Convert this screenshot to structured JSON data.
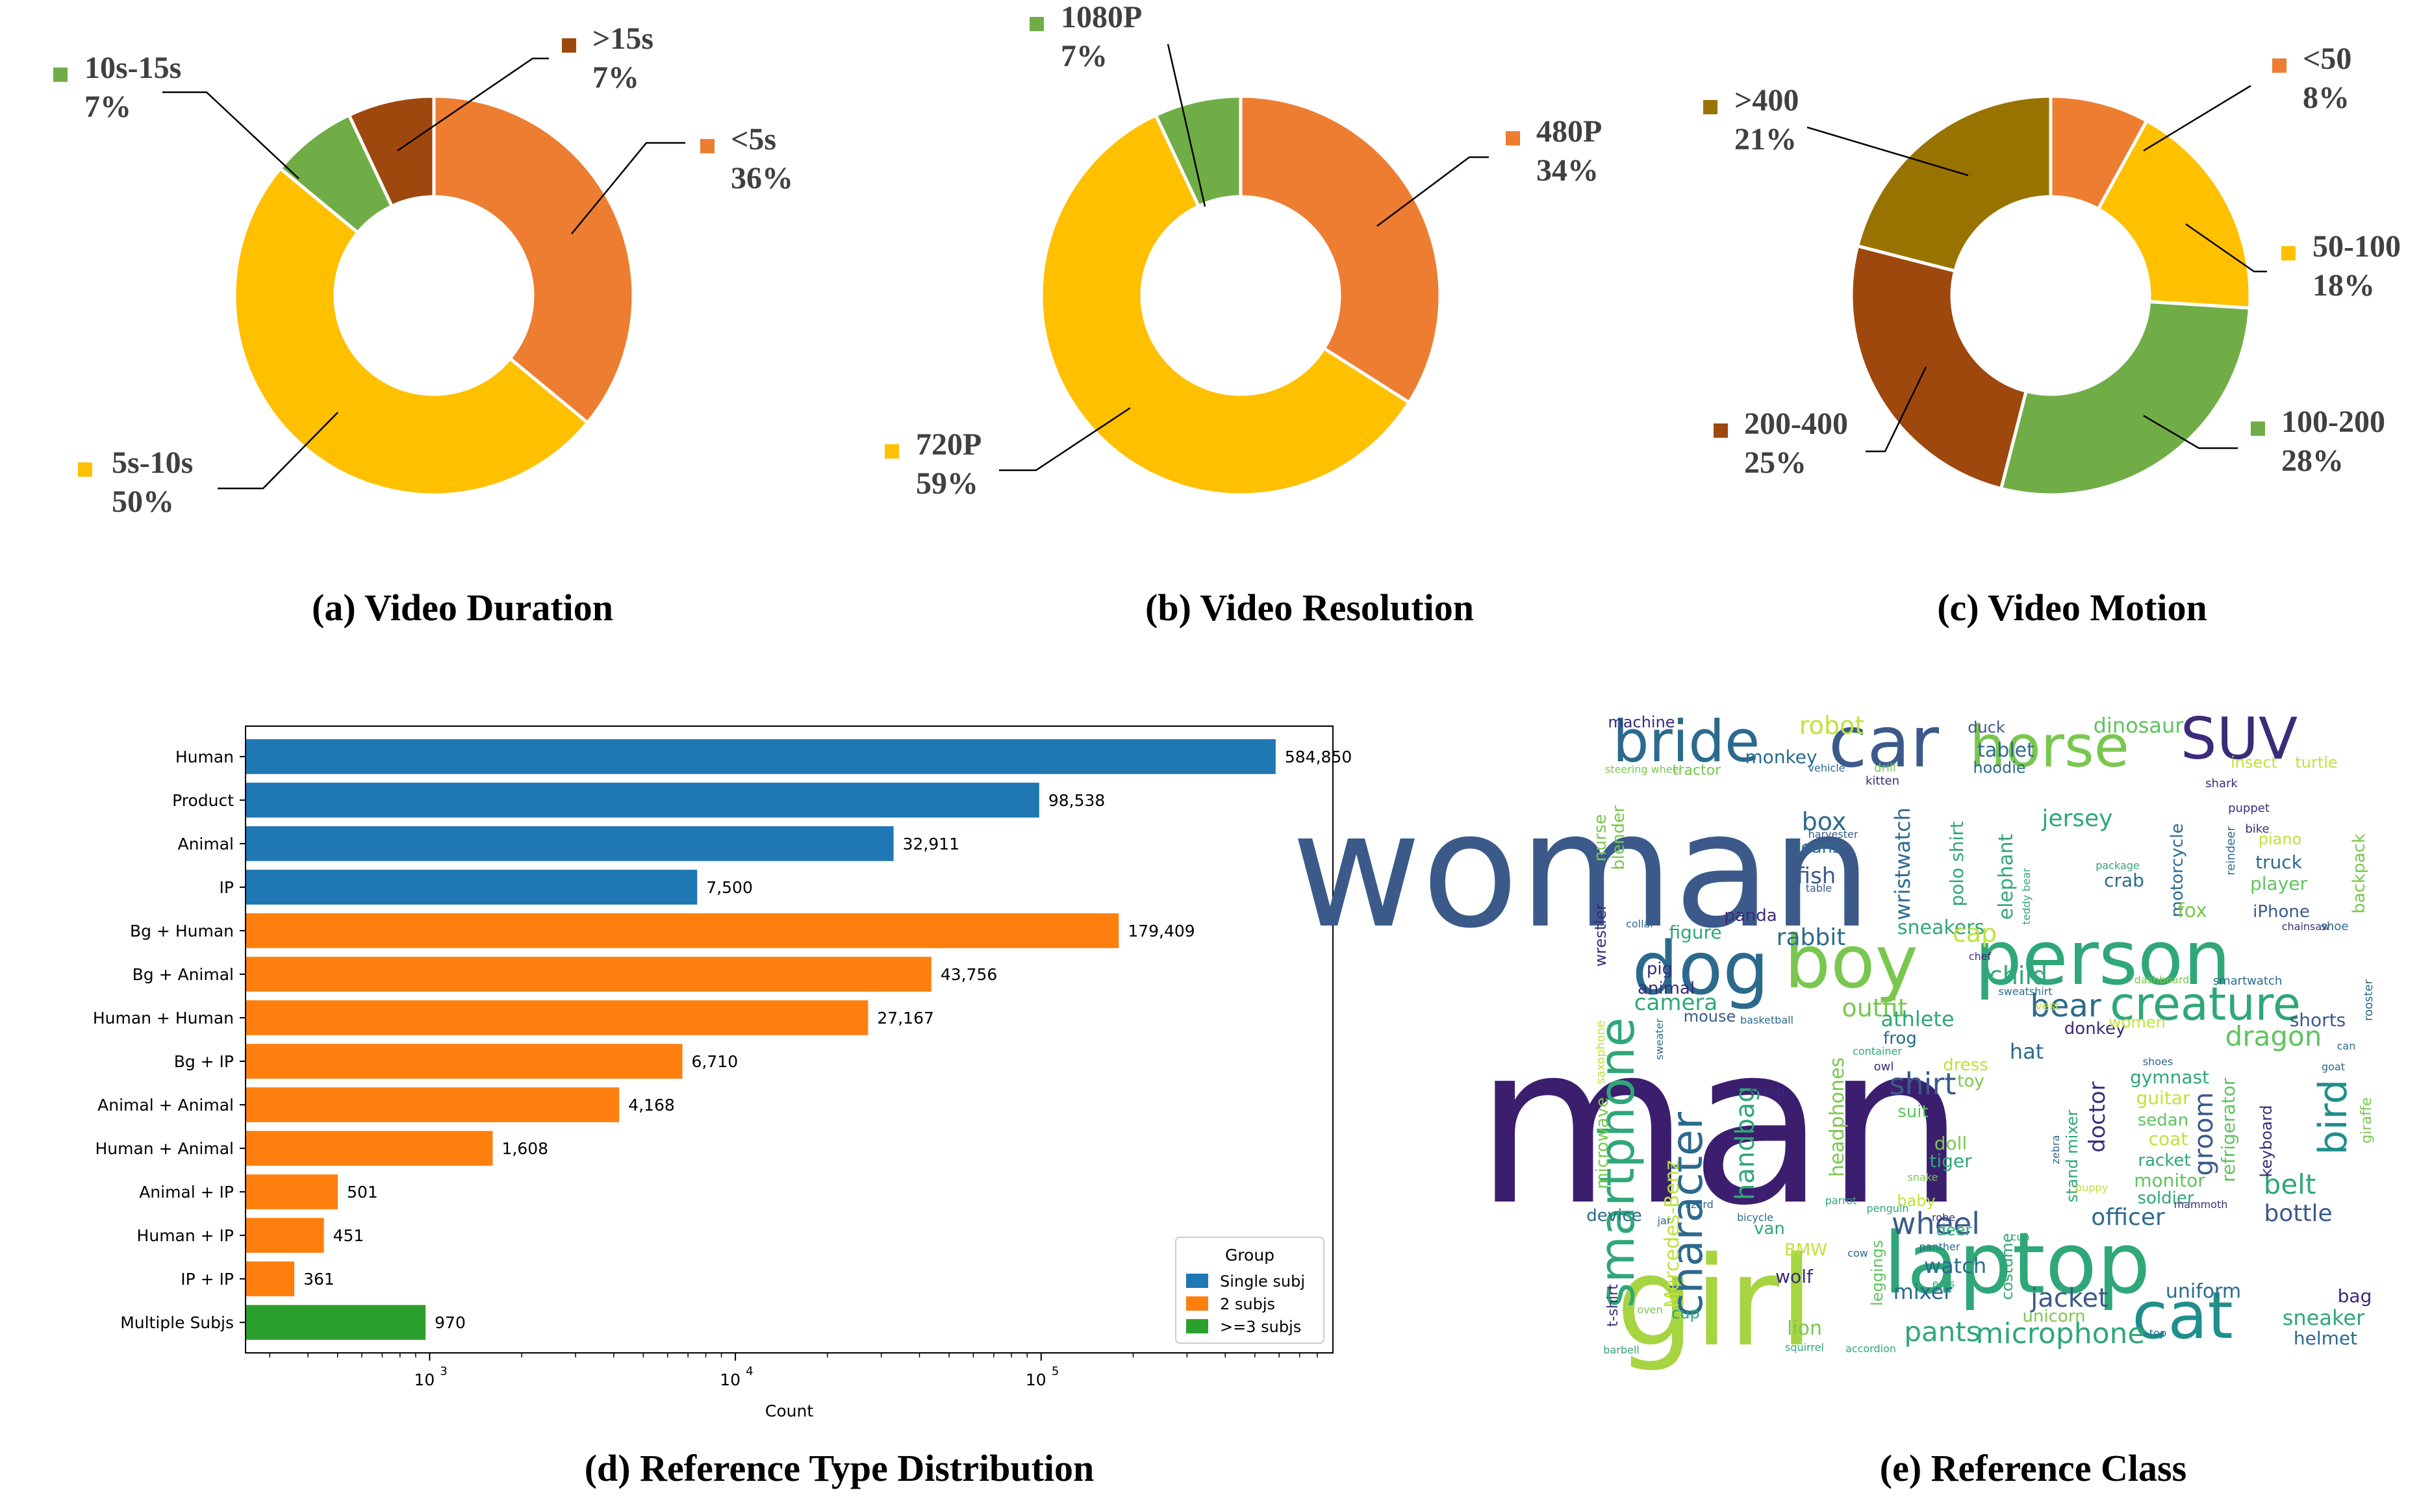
{
  "chart_data": [
    {
      "type": "pie",
      "title": "(a) Video Duration",
      "slices": [
        {
          "label": "<5s",
          "pct_label": "36%",
          "value": 36,
          "color": "#ED7D31"
        },
        {
          "label": "5s-10s",
          "pct_label": "50%",
          "value": 50,
          "color": "#FFC000"
        },
        {
          "label": "10s-15s",
          "pct_label": "7%",
          "value": 7,
          "color": "#70AD47"
        },
        {
          "label": ">15s",
          "pct_label": "7%",
          "value": 7,
          "color": "#9E480E"
        }
      ]
    },
    {
      "type": "pie",
      "title": "(b) Video Resolution",
      "slices": [
        {
          "label": "480P",
          "pct_label": "34%",
          "value": 34,
          "color": "#ED7D31"
        },
        {
          "label": "720P",
          "pct_label": "59%",
          "value": 59,
          "color": "#FFC000"
        },
        {
          "label": "1080P",
          "pct_label": "7%",
          "value": 7,
          "color": "#70AD47"
        }
      ]
    },
    {
      "type": "pie",
      "title": "(c) Video Motion",
      "slices": [
        {
          "label": "<50",
          "pct_label": "8%",
          "value": 8,
          "color": "#ED7D31"
        },
        {
          "label": "50-100",
          "pct_label": "18%",
          "value": 18,
          "color": "#FFC000"
        },
        {
          "label": "100-200",
          "pct_label": "28%",
          "value": 28,
          "color": "#70AD47"
        },
        {
          "label": "200-400",
          "pct_label": "25%",
          "value": 25,
          "color": "#9E480E"
        },
        {
          "label": ">400",
          "pct_label": "21%",
          "value": 21,
          "color": "#997300"
        }
      ]
    },
    {
      "type": "bar",
      "orientation": "horizontal",
      "title": "(d) Reference Type Distribution",
      "xlabel": "Count",
      "xscale": "log",
      "xlim": [
        250,
        900000
      ],
      "xticks": [
        {
          "value": 1000,
          "base": "10",
          "exp": "3"
        },
        {
          "value": 10000,
          "base": "10",
          "exp": "4"
        },
        {
          "value": 100000,
          "base": "10",
          "exp": "5"
        }
      ],
      "categories": [
        "Human",
        "Product",
        "Animal",
        "IP",
        "Bg + Human",
        "Bg + Animal",
        "Human + Human",
        "Bg + IP",
        "Animal + Animal",
        "Human + Animal",
        "Animal + IP",
        "Human + IP",
        "IP + IP",
        "Multiple Subjs"
      ],
      "values": [
        584850,
        98538,
        32911,
        7500,
        179409,
        43756,
        27167,
        6710,
        4168,
        1608,
        501,
        451,
        361,
        970
      ],
      "value_labels": [
        "584,850",
        "98,538",
        "32,911",
        "7,500",
        "179,409",
        "43,756",
        "27,167",
        "6,710",
        "4,168",
        "1,608",
        "501",
        "451",
        "361",
        "970"
      ],
      "groups": [
        0,
        0,
        0,
        0,
        1,
        1,
        1,
        1,
        1,
        1,
        1,
        1,
        1,
        2
      ],
      "legend": {
        "title": "Group",
        "placement": "lower-right",
        "entries": [
          {
            "name": "Single subj",
            "color": "#1f77b4"
          },
          {
            "name": "2 subjs",
            "color": "#ff7f0e"
          },
          {
            "name": ">=3 subjs",
            "color": "#2ca02c"
          }
        ]
      }
    },
    {
      "type": "wordcloud",
      "title": "(e) Reference Class",
      "words": [
        "man",
        "woman",
        "girl",
        "laptop",
        "boy",
        "person",
        "dog",
        "car",
        "SUV",
        "bride",
        "horse",
        "cat",
        "smartphone",
        "character",
        "creature",
        "bird",
        "bear",
        "dragon",
        "robot",
        "dinosaur",
        "rabbit",
        "child",
        "outfit",
        "camera",
        "shirt",
        "wheel",
        "microphone",
        "pants",
        "jacket",
        "officer",
        "bottle",
        "belt",
        "doctor",
        "groom",
        "fish",
        "box",
        "jersey",
        "sneakers",
        "tablet",
        "monkey",
        "truck",
        "player",
        "machine",
        "duck",
        "hoodie",
        "tractor",
        "blender",
        "nurse",
        "jeans",
        "wristwatch",
        "polo shirt",
        "elephant",
        "crab",
        "motorcycle",
        "fox",
        "backpack",
        "figure",
        "panda",
        "cap",
        "animal",
        "pig",
        "wrestler",
        "handbag",
        "headphones",
        "Mercedes-Benz",
        "watch",
        "mixer",
        "wolf",
        "lion",
        "uniform",
        "sneaker",
        "helmet",
        "bag",
        "frog",
        "athlete",
        "hat",
        "dress",
        "toy",
        "doll",
        "tiger",
        "suit",
        "gymnast",
        "guitar",
        "sedan",
        "coat",
        "racket",
        "monitor",
        "soldier",
        "keyboard",
        "refrigerator",
        "microwave",
        "device",
        "van",
        "BMW",
        "mouse",
        "shorts",
        "donkey",
        "women",
        "deer",
        "baby",
        "costume",
        "stand mixer",
        "leggings",
        "unicorn",
        "cup",
        "t-shirt",
        "iPhone",
        "piano",
        "puppet",
        "bike",
        "shark",
        "reindeer",
        "insect",
        "turtle",
        "kitten",
        "drill",
        "vehicle",
        "steering wheel",
        "harvester",
        "table",
        "package",
        "smartwatch",
        "giraffe",
        "chainsaw",
        "shoe",
        "rooster",
        "teddy bear",
        "container",
        "basketball",
        "chef",
        "vest",
        "sweatshirt",
        "dashboard",
        "collar",
        "saxophone",
        "sweater",
        "sheep",
        "owl",
        "zebra",
        "snake",
        "lizard",
        "parrot",
        "penguin",
        "puppy",
        "bicycle",
        "robe",
        "cub",
        "mammoth",
        "goat",
        "barbell",
        "squirrel",
        "accordion",
        "panther",
        "ears",
        "oven",
        "jar",
        "cow",
        "top",
        "shoes",
        "can"
      ]
    }
  ]
}
